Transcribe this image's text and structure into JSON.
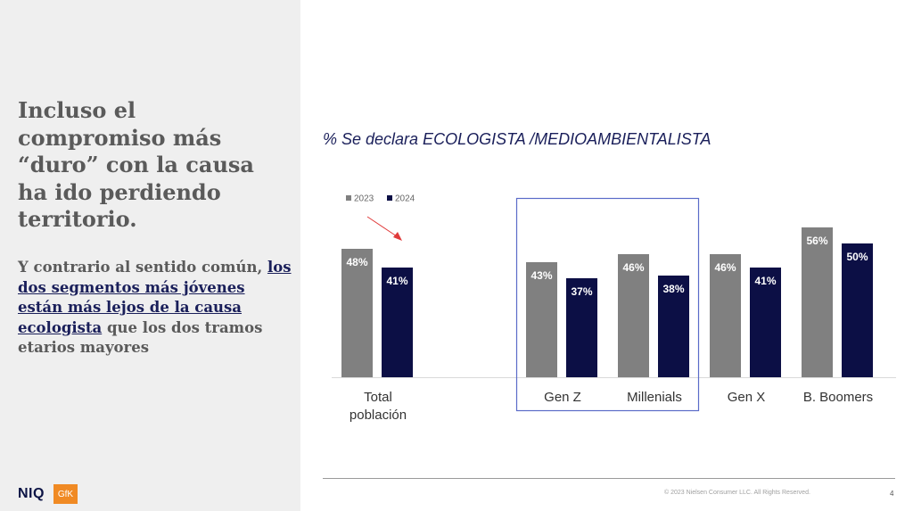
{
  "slide": {
    "headline": "Incluso el\ncompromiso más\n“duro” con la causa\nha ido perdiendo\nterritorio.",
    "subtext_start": "Y contrario al sentido común, ",
    "subtext_highlight": "los dos segmentos más jóvenes están más lejos de la causa ecologista",
    "subtext_end": " que los dos tramos etarios mayores",
    "brand": "NIQ",
    "partner_logo": "GfK",
    "copyright": "© 2023 Nielsen Consumer LLC. All Rights Reserved.",
    "page_number": "4"
  },
  "chart_data": {
    "type": "bar",
    "title": "% Se declara ECOLOGISTA /MEDIOAMBIENTALISTA",
    "categories": [
      "Total población",
      "Gen Z",
      "Millenials",
      "Gen X",
      "B. Boomers"
    ],
    "series": [
      {
        "name": "2023",
        "values": [
          48,
          43,
          46,
          46,
          56
        ],
        "labels": [
          "48%",
          "43%",
          "46%",
          "46%",
          "56%"
        ],
        "color": "#808080"
      },
      {
        "name": "2024",
        "values": [
          41,
          37,
          38,
          41,
          50
        ],
        "labels": [
          "41%",
          "37%",
          "38%",
          "41%",
          "50%"
        ],
        "color": "#0c0f45"
      }
    ],
    "ylim": [
      0,
      100
    ],
    "legend_position": "top-left",
    "highlight_group": [
      "Gen Z",
      "Millenials"
    ],
    "highlight_color": "#5b6bc8",
    "arrow_color": "#e03a3a",
    "grid": false
  }
}
